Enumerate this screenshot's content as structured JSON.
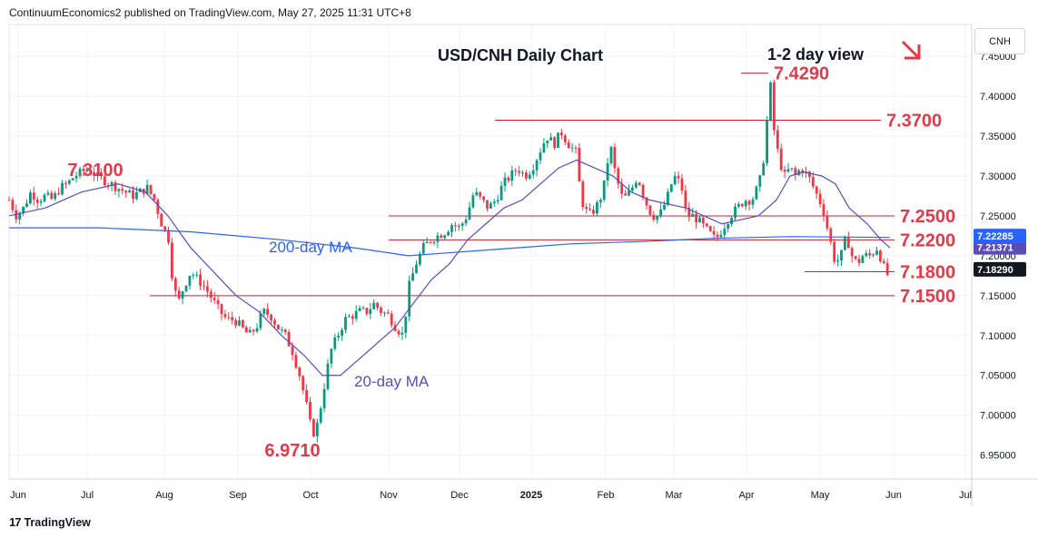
{
  "header": {
    "attribution": "ContinuumEconomics2 published on TradingView.com, May 27, 2025 11:31 UTC+8"
  },
  "footer": {
    "logo_text": "TradingView"
  },
  "symbol": "CNH",
  "chart_data": {
    "type": "candlestick",
    "title": "USD/CNH Daily Chart",
    "subtitle": "1-2 day view",
    "ylim": [
      6.92,
      7.49
    ],
    "y_ticks": [
      "7.45000",
      "7.40000",
      "7.35000",
      "7.30000",
      "7.25000",
      "7.20000",
      "7.15000",
      "7.10000",
      "7.05000",
      "7.00000",
      "6.95000"
    ],
    "x_ticks": [
      "Jun",
      "Jul",
      "Aug",
      "Sep",
      "Oct",
      "Nov",
      "Dec",
      "2025",
      "Feb",
      "Mar",
      "Apr",
      "May",
      "Jun",
      "Jul"
    ],
    "current_price_label": "7.18290",
    "ma_labels": {
      "ma20_value": "7.21371",
      "ma200_value": "7.22285",
      "price_hidden": "7.20000"
    },
    "levels": [
      {
        "label": "7.4290",
        "value": 7.429
      },
      {
        "label": "7.3700",
        "value": 7.37
      },
      {
        "label": "7.2500",
        "value": 7.25
      },
      {
        "label": "7.2200",
        "value": 7.22
      },
      {
        "label": "7.1800",
        "value": 7.18
      },
      {
        "label": "7.1500",
        "value": 7.15
      }
    ],
    "annotations": [
      {
        "text": "7.3100",
        "value": 7.31
      },
      {
        "text": "6.9710",
        "value": 6.971
      },
      {
        "text": "200-day MA"
      },
      {
        "text": "20-day MA"
      }
    ],
    "ohlc_path": [
      [
        0,
        7.27
      ],
      [
        8,
        7.25
      ],
      [
        16,
        7.26
      ],
      [
        24,
        7.28
      ],
      [
        32,
        7.27
      ],
      [
        40,
        7.275
      ],
      [
        48,
        7.27
      ],
      [
        56,
        7.285
      ],
      [
        64,
        7.29
      ],
      [
        72,
        7.3
      ],
      [
        80,
        7.305
      ],
      [
        88,
        7.31
      ],
      [
        96,
        7.3
      ],
      [
        104,
        7.295
      ],
      [
        112,
        7.29
      ],
      [
        120,
        7.285
      ],
      [
        128,
        7.28
      ],
      [
        136,
        7.275
      ],
      [
        144,
        7.28
      ],
      [
        152,
        7.285
      ],
      [
        160,
        7.27
      ],
      [
        168,
        7.24
      ],
      [
        176,
        7.22
      ],
      [
        180,
        7.17
      ],
      [
        186,
        7.14
      ],
      [
        192,
        7.16
      ],
      [
        200,
        7.18
      ],
      [
        208,
        7.17
      ],
      [
        216,
        7.16
      ],
      [
        224,
        7.145
      ],
      [
        232,
        7.13
      ],
      [
        240,
        7.12
      ],
      [
        248,
        7.12
      ],
      [
        256,
        7.11
      ],
      [
        264,
        7.1
      ],
      [
        272,
        7.11
      ],
      [
        280,
        7.13
      ],
      [
        288,
        7.125
      ],
      [
        296,
        7.11
      ],
      [
        304,
        7.1
      ],
      [
        312,
        7.08
      ],
      [
        320,
        7.05
      ],
      [
        328,
        7.01
      ],
      [
        334,
        6.975
      ],
      [
        340,
        6.99
      ],
      [
        346,
        7.03
      ],
      [
        354,
        7.08
      ],
      [
        362,
        7.1
      ],
      [
        370,
        7.12
      ],
      [
        378,
        7.125
      ],
      [
        386,
        7.13
      ],
      [
        394,
        7.13
      ],
      [
        402,
        7.14
      ],
      [
        410,
        7.13
      ],
      [
        418,
        7.125
      ],
      [
        426,
        7.11
      ],
      [
        434,
        7.1
      ],
      [
        440,
        7.16
      ],
      [
        448,
        7.19
      ],
      [
        456,
        7.21
      ],
      [
        464,
        7.22
      ],
      [
        472,
        7.225
      ],
      [
        480,
        7.23
      ],
      [
        488,
        7.24
      ],
      [
        496,
        7.235
      ],
      [
        504,
        7.25
      ],
      [
        512,
        7.28
      ],
      [
        520,
        7.27
      ],
      [
        528,
        7.26
      ],
      [
        536,
        7.27
      ],
      [
        544,
        7.29
      ],
      [
        552,
        7.3
      ],
      [
        560,
        7.31
      ],
      [
        568,
        7.3
      ],
      [
        576,
        7.31
      ],
      [
        584,
        7.33
      ],
      [
        592,
        7.35
      ],
      [
        600,
        7.34
      ],
      [
        608,
        7.355
      ],
      [
        616,
        7.34
      ],
      [
        624,
        7.33
      ],
      [
        630,
        7.27
      ],
      [
        638,
        7.25
      ],
      [
        646,
        7.26
      ],
      [
        654,
        7.28
      ],
      [
        662,
        7.34
      ],
      [
        668,
        7.3
      ],
      [
        676,
        7.27
      ],
      [
        684,
        7.28
      ],
      [
        692,
        7.3
      ],
      [
        700,
        7.27
      ],
      [
        708,
        7.25
      ],
      [
        716,
        7.25
      ],
      [
        724,
        7.27
      ],
      [
        732,
        7.3
      ],
      [
        740,
        7.29
      ],
      [
        746,
        7.25
      ],
      [
        754,
        7.25
      ],
      [
        762,
        7.24
      ],
      [
        770,
        7.23
      ],
      [
        778,
        7.22
      ],
      [
        786,
        7.235
      ],
      [
        794,
        7.25
      ],
      [
        802,
        7.26
      ],
      [
        810,
        7.27
      ],
      [
        818,
        7.27
      ],
      [
        826,
        7.29
      ],
      [
        832,
        7.33
      ],
      [
        838,
        7.42
      ],
      [
        842,
        7.36
      ],
      [
        848,
        7.32
      ],
      [
        854,
        7.3
      ],
      [
        860,
        7.31
      ],
      [
        866,
        7.3
      ],
      [
        872,
        7.31
      ],
      [
        880,
        7.3
      ],
      [
        888,
        7.28
      ],
      [
        896,
        7.26
      ],
      [
        904,
        7.22
      ],
      [
        910,
        7.19
      ],
      [
        916,
        7.2
      ],
      [
        922,
        7.225
      ],
      [
        928,
        7.2
      ],
      [
        934,
        7.19
      ],
      [
        940,
        7.2
      ],
      [
        948,
        7.2
      ],
      [
        956,
        7.21
      ],
      [
        962,
        7.19
      ],
      [
        966,
        7.175
      ],
      [
        970,
        7.18
      ]
    ],
    "ma20_path": [
      [
        0,
        7.25
      ],
      [
        40,
        7.26
      ],
      [
        80,
        7.28
      ],
      [
        120,
        7.29
      ],
      [
        150,
        7.28
      ],
      [
        175,
        7.25
      ],
      [
        200,
        7.21
      ],
      [
        225,
        7.18
      ],
      [
        250,
        7.15
      ],
      [
        275,
        7.13
      ],
      [
        300,
        7.1
      ],
      [
        325,
        7.075
      ],
      [
        345,
        7.05
      ],
      [
        365,
        7.05
      ],
      [
        385,
        7.07
      ],
      [
        405,
        7.09
      ],
      [
        425,
        7.11
      ],
      [
        445,
        7.14
      ],
      [
        465,
        7.17
      ],
      [
        485,
        7.19
      ],
      [
        505,
        7.22
      ],
      [
        525,
        7.24
      ],
      [
        545,
        7.26
      ],
      [
        565,
        7.27
      ],
      [
        585,
        7.29
      ],
      [
        605,
        7.31
      ],
      [
        625,
        7.32
      ],
      [
        645,
        7.31
      ],
      [
        665,
        7.3
      ],
      [
        685,
        7.28
      ],
      [
        705,
        7.27
      ],
      [
        725,
        7.265
      ],
      [
        745,
        7.26
      ],
      [
        765,
        7.25
      ],
      [
        785,
        7.24
      ],
      [
        805,
        7.245
      ],
      [
        825,
        7.25
      ],
      [
        845,
        7.27
      ],
      [
        860,
        7.3
      ],
      [
        875,
        7.305
      ],
      [
        895,
        7.3
      ],
      [
        910,
        7.29
      ],
      [
        925,
        7.26
      ],
      [
        945,
        7.24
      ],
      [
        960,
        7.22
      ],
      [
        970,
        7.21
      ]
    ],
    "ma200_path": [
      [
        0,
        7.235
      ],
      [
        100,
        7.235
      ],
      [
        200,
        7.23
      ],
      [
        300,
        7.22
      ],
      [
        380,
        7.21
      ],
      [
        440,
        7.2
      ],
      [
        500,
        7.205
      ],
      [
        560,
        7.21
      ],
      [
        620,
        7.215
      ],
      [
        700,
        7.218
      ],
      [
        780,
        7.222
      ],
      [
        860,
        7.224
      ],
      [
        970,
        7.223
      ]
    ]
  }
}
